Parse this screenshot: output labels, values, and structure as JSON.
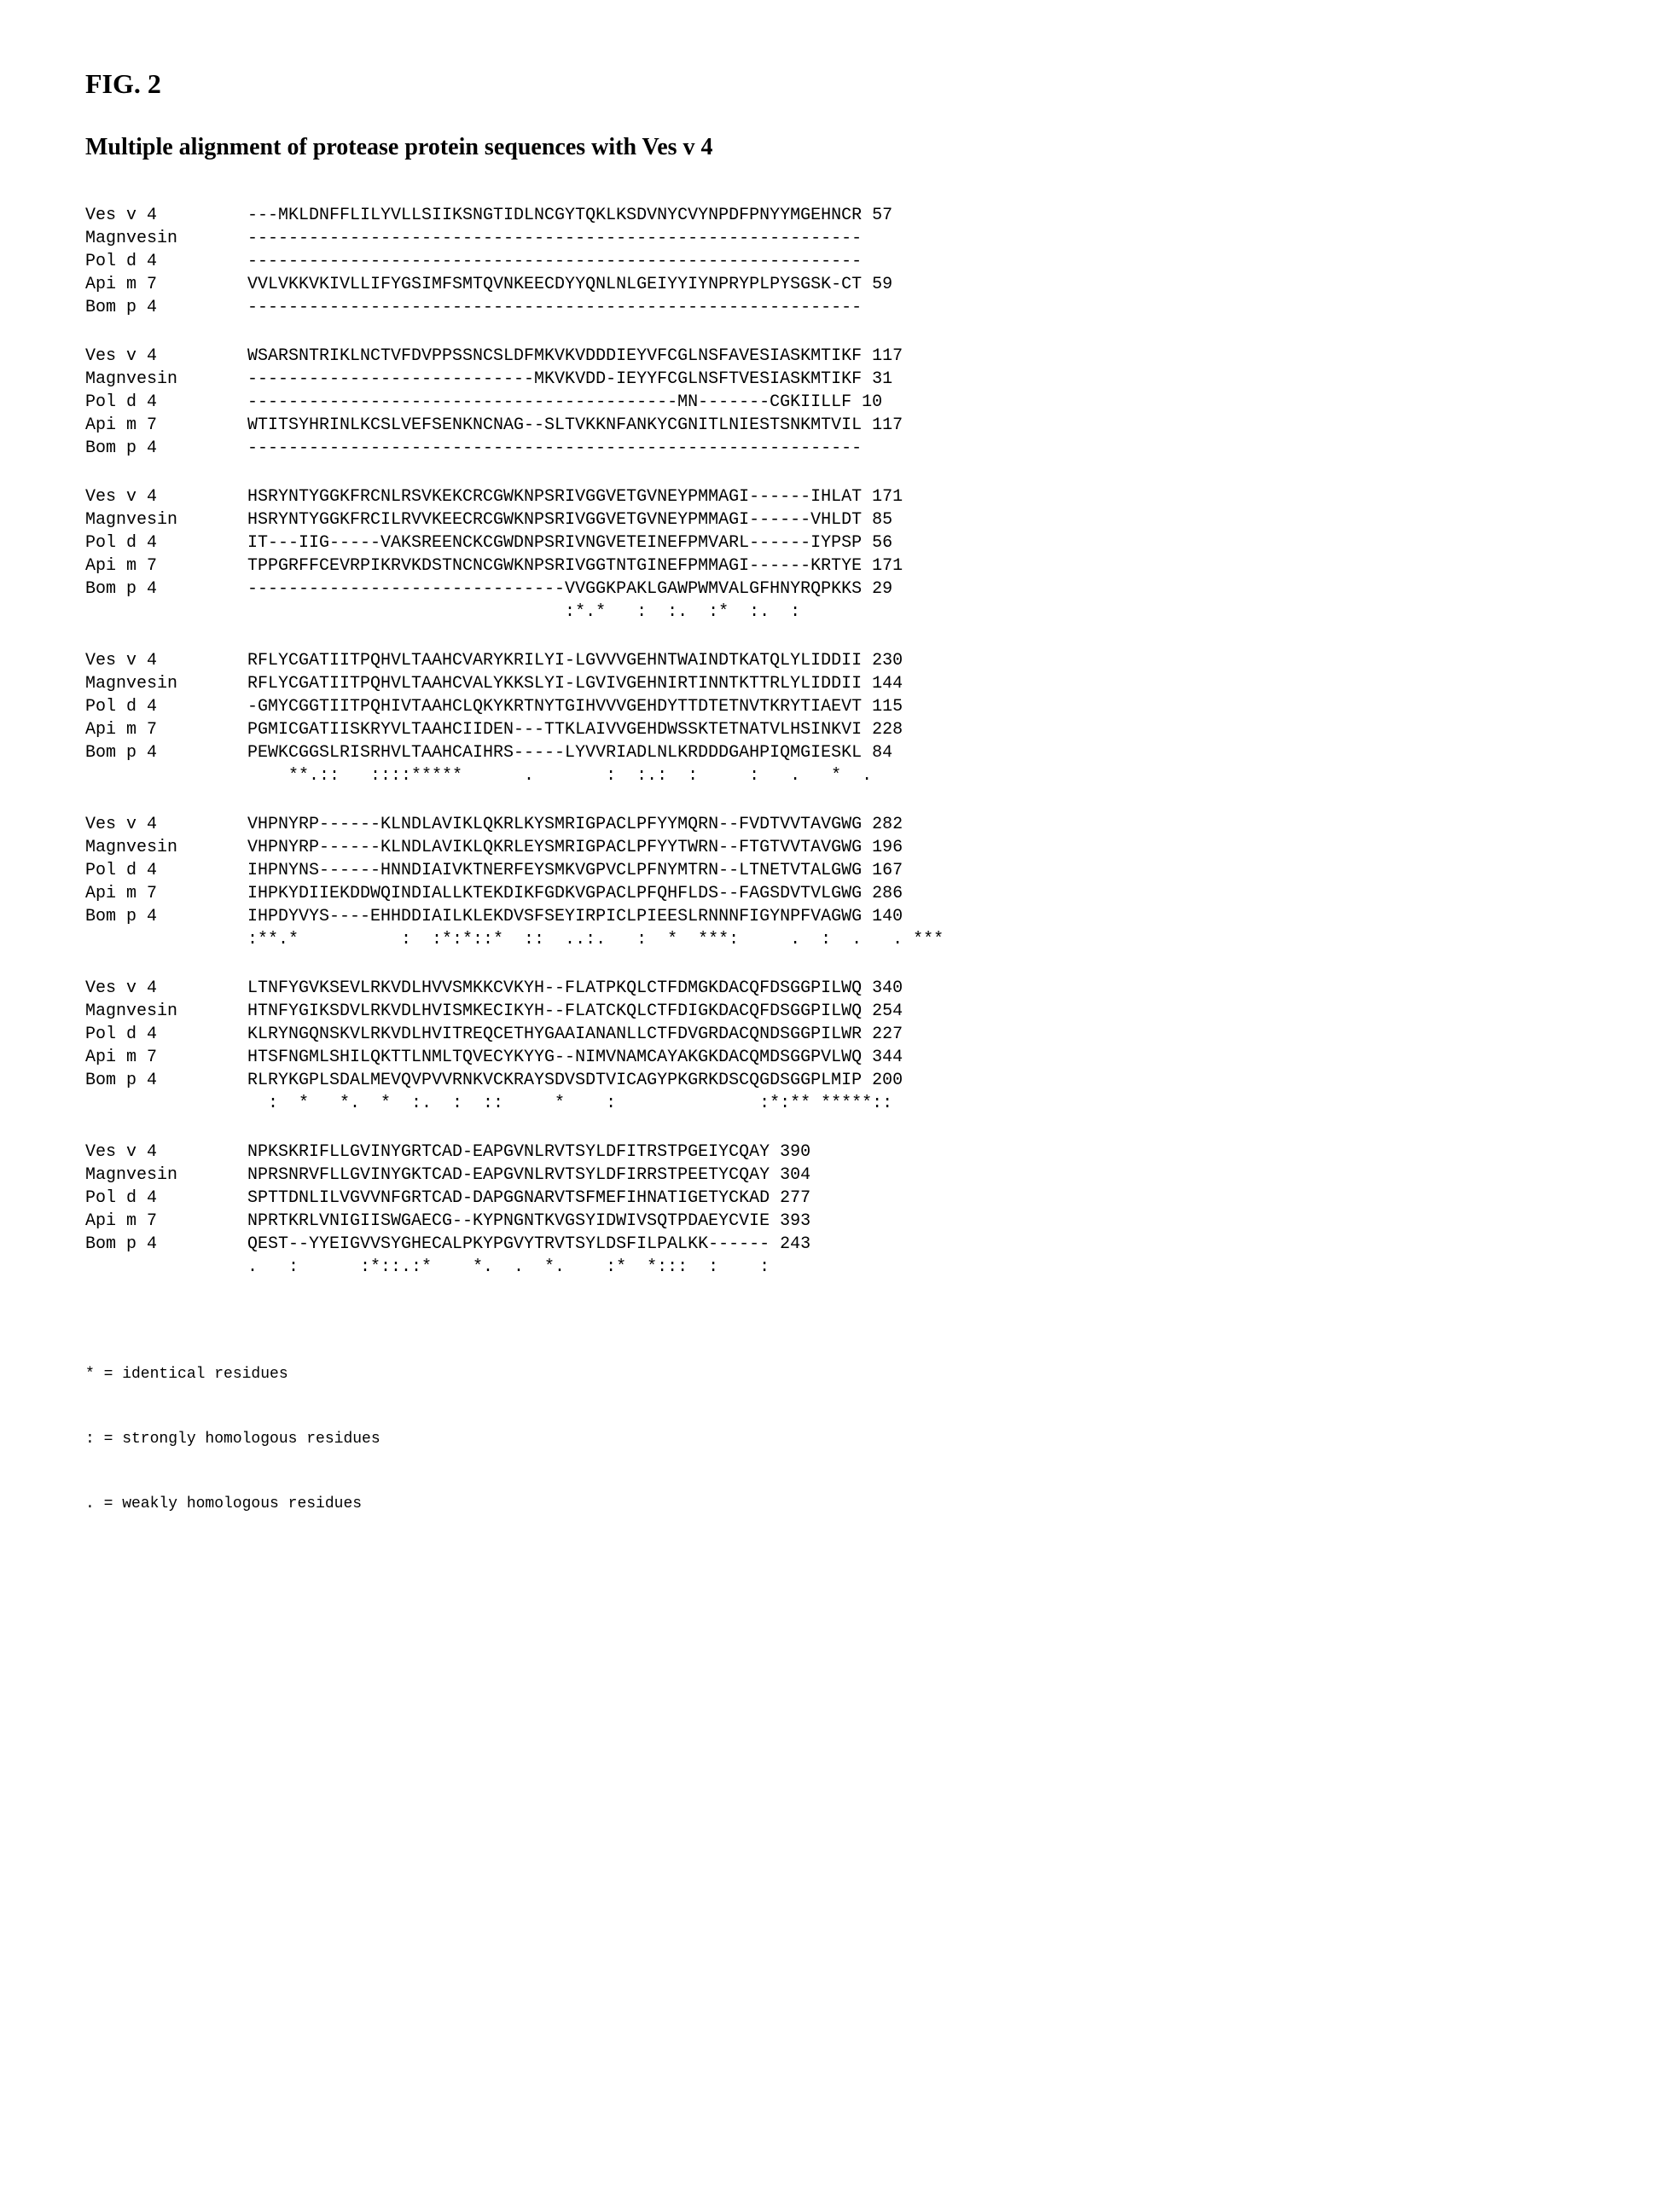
{
  "figure_label": "FIG. 2",
  "title": "Multiple alignment of protease protein sequences with Ves v 4",
  "font": {
    "title_family": "Times New Roman",
    "title_size_pt": 28,
    "mono_family": "Courier New",
    "mono_size_pt": 20
  },
  "colors": {
    "background": "#ffffff",
    "text": "#000000"
  },
  "labels": [
    "Ves v 4",
    "Magnvesin",
    "Pol d 4",
    "Api m 7",
    "Bom p 4"
  ],
  "blocks": [
    {
      "rows": [
        {
          "label": "Ves v 4",
          "seq": "---MKLDNFFLILYVLLSIIKSNGTIDLNCGYTQKLKSDVNYCVYNPDFPNYYMGEHNCR",
          "pos": "57"
        },
        {
          "label": "Magnvesin",
          "seq": "------------------------------------------------------------",
          "pos": ""
        },
        {
          "label": "Pol d 4",
          "seq": "------------------------------------------------------------",
          "pos": ""
        },
        {
          "label": "Api m 7",
          "seq": "VVLVKKVKIVLLIFYGSIMFSMTQVNKEECDYYQNLNLGEIYYIYNPRYPLPYSGSK-CT",
          "pos": "59"
        },
        {
          "label": "Bom p 4",
          "seq": "------------------------------------------------------------",
          "pos": ""
        }
      ],
      "consensus": ""
    },
    {
      "rows": [
        {
          "label": "Ves v 4",
          "seq": "WSARSNTRIKLNCTVFDVPPSSNCSLDFMKVKVDDDIEYVFCGLNSFAVESIASKMTIKF",
          "pos": "117"
        },
        {
          "label": "Magnvesin",
          "seq": "----------------------------MKVKVDD-IEYYFCGLNSFTVESIASKMTIKF",
          "pos": "31"
        },
        {
          "label": "Pol d 4",
          "seq": "------------------------------------------MN-------CGKIILLF",
          "pos": "10"
        },
        {
          "label": "Api m 7",
          "seq": "WTITSYHRINLKCSLVEFSENKNCNAG--SLTVKKNFANKYCGNITLNIESTSNKMTVIL",
          "pos": "117"
        },
        {
          "label": "Bom p 4",
          "seq": "------------------------------------------------------------",
          "pos": ""
        }
      ],
      "consensus": ""
    },
    {
      "rows": [
        {
          "label": "Ves v 4",
          "seq": "HSRYNTYGGKFRCNLRSVKEKCRCGWKNPSRIVGGVETGVNEYPMMAGI------IHLAT",
          "pos": "171"
        },
        {
          "label": "Magnvesin",
          "seq": "HSRYNTYGGKFRCILRVVKEECRCGWKNPSRIVGGVETGVNEYPMMAGI------VHLDT",
          "pos": "85"
        },
        {
          "label": "Pol d 4",
          "seq": "IT---IIG-----VAKSREENCKCGWDNPSRIVNGVETEINEFPMVARL------IYPSP",
          "pos": "56"
        },
        {
          "label": "Api m 7",
          "seq": "TPPGRFFCEVRPIKRVKDSTNCNCGWKNPSRIVGGTNTGINEFPMMAGI------KRTYE",
          "pos": "171"
        },
        {
          "label": "Bom p 4",
          "seq": "-------------------------------VVGGKPAKLGAWPWMVALGFHNYRQPKKS",
          "pos": "29"
        }
      ],
      "consensus": "                               :*.*   :  :.  :*  :.  :      "
    },
    {
      "rows": [
        {
          "label": "Ves v 4",
          "seq": "RFLYCGATIITPQHVLTAAHCVARYKRILYI-LGVVVGEHNTWAINDTKATQLYLIDDII",
          "pos": "230"
        },
        {
          "label": "Magnvesin",
          "seq": "RFLYCGATIITPQHVLTAAHCVALYKKSLYI-LGVIVGEHNIRTINNTKTTRLYLIDDII",
          "pos": "144"
        },
        {
          "label": "Pol d 4",
          "seq": "-GMYCGGTIITPQHIVTAAHCLQKYKRTNYTGIHVVVGEHDYTTDTETNVTKRYTIAEVT",
          "pos": "115"
        },
        {
          "label": "Api m 7",
          "seq": "PGMICGATIISKRYVLTAAHCIIDEN---TTKLAIVVGEHDWSSKTETNATVLHSINKVI",
          "pos": "228"
        },
        {
          "label": "Bom p 4",
          "seq": "PEWKCGGSLRISRHVLTAAHCAIHRS-----LYVVRIADLNLKRDDDGAHPIQMGIESKL",
          "pos": "84"
        }
      ],
      "consensus": "    **.::   ::::*****      .       :  :.:  :     :   .   *  ."
    },
    {
      "rows": [
        {
          "label": "Ves v 4",
          "seq": "VHPNYRP------KLNDLAVIKLQKRLKYSMRIGPACLPFYYMQRN--FVDTVVTAVGWG",
          "pos": "282"
        },
        {
          "label": "Magnvesin",
          "seq": "VHPNYRP------KLNDLAVIKLQKRLEYSMRIGPACLPFYYTWRN--FTGTVVTAVGWG",
          "pos": "196"
        },
        {
          "label": "Pol d 4",
          "seq": "IHPNYNS------HNNDIAIVKTNERFEYSMKVGPVCLPFNYMTRN--LTNETVTALGWG",
          "pos": "167"
        },
        {
          "label": "Api m 7",
          "seq": "IHPKYDIIEKDDWQINDIALLKTEKDIKFGDKVGPACLPFQHFLDS--FAGSDVTVLGWG",
          "pos": "286"
        },
        {
          "label": "Bom p 4",
          "seq": "IHPDYVYS----EHHDDIAILKLEKDVSFSEYIRPICLPIEESLRNNNFIGYNPFVAGWG",
          "pos": "140"
        }
      ],
      "consensus": ":**.*          :  :*:*::*  ::  ..:.   :  *  ***:     .  :  .   . ***"
    },
    {
      "rows": [
        {
          "label": "Ves v 4",
          "seq": "LTNFYGVKSEVLRKVDLHVVSMKKCVKYH--FLATPKQLCTFDMGKDACQFDSGGPILWQ",
          "pos": "340"
        },
        {
          "label": "Magnvesin",
          "seq": "HTNFYGIKSDVLRKVDLHVISMKECIKYH--FLATCKQLCTFDIGKDACQFDSGGPILWQ",
          "pos": "254"
        },
        {
          "label": "Pol d 4",
          "seq": "KLRYNGQNSKVLRKVDLHVITREQCETHYGAAIANANLLCTFDVGRDACQNDSGGPILWR",
          "pos": "227"
        },
        {
          "label": "Api m 7",
          "seq": "HTSFNGMLSHILQKTTLNMLTQVECYKYYG--NIMVNAMCAYAKGKDACQMDSGGPVLWQ",
          "pos": "344"
        },
        {
          "label": "Bom p 4",
          "seq": "RLRYKGPLSDALMEVQVPVVRNKVCKRAYSDVSDTVICAGYPKGRKDSCQGDSGGPLMIP",
          "pos": "200"
        }
      ],
      "consensus": "  :  *   *.  *  :.  :  ::     *    :              :*:** *****::"
    },
    {
      "rows": [
        {
          "label": "Ves v 4",
          "seq": "NPKSKRIFLLGVINYGRTCAD-EAPGVNLRVTSYLDFITRSTPGEIYCQAY",
          "pos": "390"
        },
        {
          "label": "Magnvesin",
          "seq": "NPRSNRVFLLGVINYGKTCAD-EAPGVNLRVTSYLDFIRRSTPEETYCQAY",
          "pos": "304"
        },
        {
          "label": "Pol d 4",
          "seq": "SPTTDNLILVGVVNFGRTCAD-DAPGGNARVTSFMEFIHNATIGETYCKAD",
          "pos": "277"
        },
        {
          "label": "Api m 7",
          "seq": "NPRTKRLVNIGIISWGAECG--KYPNGNTKVGSYIDWIVSQTPDAEYCVIE",
          "pos": "393"
        },
        {
          "label": "Bom p 4",
          "seq": "QEST--YYEIGVVSYGHECALPKYPGVYTRVTSYLDSFILPALKK------",
          "pos": "243"
        }
      ],
      "consensus": ".   :      :*::.:*    *.  .  *.    :*  *:::  :    :"
    }
  ],
  "legend": [
    "* = identical residues",
    ": = strongly homologous residues",
    ". = weakly homologous residues"
  ]
}
